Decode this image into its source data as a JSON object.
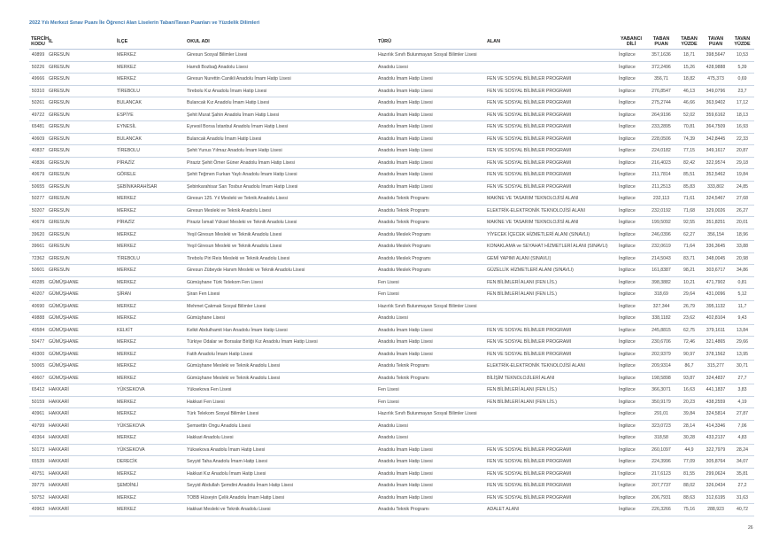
{
  "title": "2022 Yılı Merkezi Sınav Puanı İle Öğrenci Alan Liselerin Taban/Tavan Puanları ve Yüzdelik Dilimleri",
  "columns": [
    "TERCİH KODU",
    "İL",
    "İLÇE",
    "OKUL ADI",
    "TÜRÜ",
    "ALAN",
    "YABANCI DİLİ",
    "TABAN PUAN",
    "TABAN YÜZDE",
    "TAVAN PUAN",
    "TAVAN YÜZDE"
  ],
  "rows": [
    [
      "40899",
      "GIRESUN",
      "MERKEZ",
      "Giresun Sosyal Bilimler Lisesi",
      "Hazırlık Sınıfı Bulunmayan Sosyal Bilimler Lisesi",
      "",
      "İngilizce",
      "357,1636",
      "18,71",
      "398,5647",
      "10,53"
    ],
    [
      "50226",
      "GIRESUN",
      "MERKEZ",
      "Hamdi Bozbağ Anadolu Lisesi",
      "Anadolu Lisesi",
      "",
      "İngilizce",
      "372,2496",
      "15,26",
      "428,9888",
      "5,39"
    ],
    [
      "49666",
      "GIRESUN",
      "MERKEZ",
      "Giresun Nurettin Canikli Anadolu İmam Hatip Lisesi",
      "Anadolu İmam Hatip Lisesi",
      "FEN VE SOSYAL BİLİMLER PROGRAMI",
      "İngilizce",
      "356,71",
      "18,82",
      "475,373",
      "0,69"
    ],
    [
      "50310",
      "GIRESUN",
      "TİREBOLU",
      "Tirebolu Kız Anadolu İmam Hatip Lisesi",
      "Anadolu İmam Hatip Lisesi",
      "FEN VE SOSYAL BİLİMLER PROGRAMI",
      "İngilizce",
      "276,8547",
      "46,13",
      "349,0796",
      "23,7"
    ],
    [
      "50261",
      "GIRESUN",
      "BULANCAK",
      "Bulancak Kız Anadolu İmam Hatip Lisesi",
      "Anadolu İmam Hatip Lisesi",
      "FEN VE SOSYAL BİLİMLER PROGRAMI",
      "İngilizce",
      "275,2744",
      "46,66",
      "363,9402",
      "17,12"
    ],
    [
      "49722",
      "GIRESUN",
      "ESPİYE",
      "Şehit Murat Şahin Anadolu İmam Hatip Lisesi",
      "Anadolu İmam Hatip Lisesi",
      "FEN VE SOSYAL BİLİMLER PROGRAMI",
      "İngilizce",
      "264,9196",
      "52,02",
      "359,6162",
      "18,13"
    ],
    [
      "65481",
      "GIRESUN",
      "EYNESİL",
      "Eynesil Borsa İstanbul Anadolu İmam Hatip Lisesi",
      "Anadolu İmam Hatip Lisesi",
      "FEN VE SOSYAL BİLİMLER PROGRAMI",
      "İngilizce",
      "233,2895",
      "70,81",
      "364,7509",
      "16,93"
    ],
    [
      "40609",
      "GIRESUN",
      "BULANCAK",
      "Bulancak Anadolu İmam Hatip Lisesi",
      "Anadolu İmam Hatip Lisesi",
      "FEN VE SOSYAL BİLİMLER PROGRAMI",
      "İngilizce",
      "228,0506",
      "74,39",
      "342,8445",
      "22,33"
    ],
    [
      "40837",
      "GIRESUN",
      "TİREBOLU",
      "Şehit Yunus Yılmaz Anadolu İmam Hatip Lisesi",
      "Anadolu İmam Hatip Lisesi",
      "FEN VE SOSYAL BİLİMLER PROGRAMI",
      "İngilizce",
      "224,0182",
      "77,15",
      "349,1617",
      "20,87"
    ],
    [
      "40836",
      "GIRESUN",
      "PİRAZİZ",
      "Piraziz Şehit Ömer Güner Anadolu İmam Hatip Lisesi",
      "Anadolu İmam Hatip Lisesi",
      "FEN VE SOSYAL BİLİMLER PROGRAMI",
      "İngilizce",
      "216,4023",
      "82,42",
      "322,9574",
      "29,18"
    ],
    [
      "40679",
      "GIRESUN",
      "GÖRELE",
      "Şehit Teğmen Furkan Yaylı Anadolu İmam Hatip Lisesi",
      "Anadolu İmam Hatip Lisesi",
      "FEN VE SOSYAL BİLİMLER PROGRAMI",
      "İngilizce",
      "211,7814",
      "85,51",
      "352,5462",
      "19,84"
    ],
    [
      "50655",
      "GIRESUN",
      "ŞEBİNKARAHİSAR",
      "Şebinkarahisar Sarı Tosbur Anadolu İmam Hatip Lisesi",
      "Anadolu İmam Hatip Lisesi",
      "FEN VE SOSYAL BİLİMLER PROGRAMI",
      "İngilizce",
      "211,2513",
      "85,83",
      "333,802",
      "24,85"
    ],
    [
      "50277",
      "GIRESUN",
      "MERKEZ",
      "Giresun 125. Yıl Mesleki ve Teknik Anadolu Lisesi",
      "Anadolu Teknik Programı",
      "MAKİNE VE TASARIM TEKNOLOJİSİ ALANI",
      "İngilizce",
      "232,113",
      "71,61",
      "324,5467",
      "27,68"
    ],
    [
      "50207",
      "GIRESUN",
      "MERKEZ",
      "Giresun Mesleki ve Teknik Anadolu Lisesi",
      "Anadolu Teknik Programı",
      "ELEKTRİK-ELEKTRONİK TEKNOLOJİSİ ALANI",
      "İngilizce",
      "232,0192",
      "71,68",
      "329,0026",
      "26,27"
    ],
    [
      "40679",
      "GIRESUN",
      "PİRAZİZ",
      "Piraziz İsmail Yüksel Mesleki ve Teknik Anadolu Lisesi",
      "Anadolu Teknik Programı",
      "MAKİNE VE TASARIM TEKNOLOJİSİ ALANI",
      "İngilizce",
      "199,5092",
      "92,55",
      "351,8251",
      "20,01"
    ],
    [
      "39620",
      "GIRESUN",
      "MERKEZ",
      "Yeşil Giresun Mesleki ve Teknik Anadolu Lisesi",
      "Anadolu Meslek Programı",
      "YİYECEK İÇECEK HİZMETLERİ ALANI (SINAVLI)",
      "İngilizce",
      "246,0396",
      "62,27",
      "356,154",
      "18,96"
    ],
    [
      "39661",
      "GIRESUN",
      "MERKEZ",
      "Yeşil Giresun Mesleki ve Teknik Anadolu Lisesi",
      "Anadolu Meslek Programı",
      "KONAKLAMA ve SEYAHAT HİZMETLERİ ALANI (SINAVLI)",
      "İngilizce",
      "232,0619",
      "71,64",
      "336,3645",
      "33,88"
    ],
    [
      "72362",
      "GIRESUN",
      "TİREBOLU",
      "Tirebolu Piri Reis Mesleki ve Teknik Anadolu Lisesi",
      "Anadolu Meslek Programı",
      "GEMİ YAPIMI ALANI (SINAVLI)",
      "İngilizce",
      "214,5043",
      "83,71",
      "348,0045",
      "20,98"
    ],
    [
      "50601",
      "GIRESUN",
      "MERKEZ",
      "Giresun Zübeyde Hanım Mesleki ve Teknik Anadolu Lisesi",
      "Anadolu Meslek Programı",
      "GÜZELLİK HİZMETLERİ ALANI (SINAVLI)",
      "İngilizce",
      "161,8387",
      "98,21",
      "303,6717",
      "34,86"
    ],
    [
      "49285",
      "GÜMÜŞHANE",
      "MERKEZ",
      "Gümüşhane Türk Telekom Fen Lisesi",
      "Fen Lisesi",
      "FEN BİLİMLERİ ALANI (FEN LİS.)",
      "İngilizce",
      "398,3882",
      "10,21",
      "471,7902",
      "0,81"
    ],
    [
      "40207",
      "GÜMÜŞHANE",
      "ŞİRAN",
      "Şiran Fen Lisesi",
      "Fen Lisesi",
      "FEN BİLİMLERİ ALANI (FEN LİS.)",
      "İngilizce",
      "318,69",
      "29,64",
      "431,0096",
      "5,12"
    ],
    [
      "40690",
      "GÜMÜŞHANE",
      "MERKEZ",
      "Mehmet Çakmak Sosyal Bilimler Lisesi",
      "Hazırlık Sınıfı Bulunmayan Sosyal Bilimler Lisesi",
      "",
      "İngilizce",
      "327,344",
      "26,79",
      "395,1132",
      "11,7"
    ],
    [
      "49888",
      "GÜMÜŞHANE",
      "MERKEZ",
      "Gümüşhane Lisesi",
      "Anadolu Lisesi",
      "",
      "İngilizce",
      "338,1182",
      "23,62",
      "402,8104",
      "9,43"
    ],
    [
      "49584",
      "GÜMÜŞHANE",
      "KELKİT",
      "Kelkit Abdulhamit Han Anadolu İmam Hatip Lisesi",
      "Anadolu İmam Hatip Lisesi",
      "FEN VE SOSYAL BİLİMLER PROGRAMI",
      "İngilizce",
      "245,8815",
      "62,75",
      "379,1611",
      "13,84"
    ],
    [
      "50477",
      "GÜMÜŞHANE",
      "MERKEZ",
      "Türkiye Odalar ve Borsalar Birliği Kız Anadolu İmam Hatip Lisesi",
      "Anadolu İmam Hatip Lisesi",
      "FEN VE SOSYAL BİLİMLER PROGRAMI",
      "İngilizce",
      "230,6706",
      "72,46",
      "321,4865",
      "29,66"
    ],
    [
      "49300",
      "GÜMÜŞHANE",
      "MERKEZ",
      "Fatih Anadolu İmam Hatip Lisesi",
      "Anadolu İmam Hatip Lisesi",
      "FEN VE SOSYAL BİLİMLER PROGRAMI",
      "İngilizce",
      "202,9379",
      "90,97",
      "378,1562",
      "13,95"
    ],
    [
      "50065",
      "GÜMÜŞHANE",
      "MERKEZ",
      "Gümüşhane Mesleki ve Teknik Anadolu Lisesi",
      "Anadolu Teknik Programı",
      "ELEKTRİK-ELEKTRONİK TEKNOLOJİSİ ALANI",
      "İngilizce",
      "209,9314",
      "86,7",
      "315,277",
      "30,71"
    ],
    [
      "49607",
      "GÜMÜŞHANE",
      "MERKEZ",
      "Gümüşhane Mesleki ve Teknik Anadolu Lisesi",
      "Anadolu Teknik Programı",
      "BİLİŞİM TEKNOLOJİLERİ ALANI",
      "İngilizce",
      "198,5898",
      "93,87",
      "324,4837",
      "27,7"
    ],
    [
      "65412",
      "HAKKARİ",
      "YÜKSEKOVA",
      "Yüksekova Fen Lisesi",
      "Fen Lisesi",
      "FEN BİLİMLERİ ALANI (FEN LİS.)",
      "İngilizce",
      "366,3071",
      "16,63",
      "441,1837",
      "3,83"
    ],
    [
      "50159",
      "HAKKARİ",
      "MERKEZ",
      "Hakkari Fen Lisesi",
      "Fen Lisesi",
      "FEN BİLİMLERİ ALANI (FEN LİS.)",
      "İngilizce",
      "350,9179",
      "20,23",
      "438,2559",
      "4,19"
    ],
    [
      "40961",
      "HAKKARİ",
      "MERKEZ",
      "Türk Telekom Sosyal Bilimler Lisesi",
      "Hazırlık Sınıfı Bulunmayan Sosyal Bilimler Lisesi",
      "",
      "İngilizce",
      "291,01",
      "39,84",
      "324,5814",
      "27,87"
    ],
    [
      "49799",
      "HAKKARİ",
      "YÜKSEKOVA",
      "Şemsettin Ongu Anadolu Lisesi",
      "Anadolu Lisesi",
      "",
      "İngilizce",
      "323,0723",
      "28,14",
      "414,3346",
      "7,06"
    ],
    [
      "49364",
      "HAKKARİ",
      "MERKEZ",
      "Hakkari Anadolu Lisesi",
      "Anadolu Lisesi",
      "",
      "İngilizce",
      "318,58",
      "30,28",
      "433,2137",
      "4,83"
    ],
    [
      "50173",
      "HAKKARİ",
      "YÜKSEKOVA",
      "Yüksekova Anadolu İmam Hatip Lisesi",
      "Anadolu İmam Hatip Lisesi",
      "FEN VE SOSYAL BİLİMLER PROGRAMI",
      "İngilizce",
      "260,1097",
      "44,9",
      "322,7979",
      "28,24"
    ],
    [
      "65539",
      "HAKKARİ",
      "DERECİK",
      "Seyyid Taha Anadolu İmam Hatip Lisesi",
      "Anadolu İmam Hatip Lisesi",
      "FEN VE SOSYAL BİLİMLER PROGRAMI",
      "İngilizce",
      "224,3996",
      "77,09",
      "305,8764",
      "34,07"
    ],
    [
      "49751",
      "HAKKARİ",
      "MERKEZ",
      "Hakkari Kız Anadolu İmam Hatip Lisesi",
      "Anadolu İmam Hatip Lisesi",
      "FEN VE SOSYAL BİLİMLER PROGRAMI",
      "İngilizce",
      "217,6123",
      "81,55",
      "299,0624",
      "35,81"
    ],
    [
      "39775",
      "HAKKARİ",
      "ŞEMDİNLİ",
      "Seyyid Abdullah Şemdini Anadolu İmam Hatip Lisesi",
      "Anadolu İmam Hatip Lisesi",
      "FEN VE SOSYAL BİLİMLER PROGRAMI",
      "İngilizce",
      "207,7737",
      "88,02",
      "326,0434",
      "27,2"
    ],
    [
      "50752",
      "HAKKARİ",
      "MERKEZ",
      "TOBB Hüseyin Çelik Anadolu İmam Hatip Lisesi",
      "Anadolu İmam Hatip Lisesi",
      "FEN VE SOSYAL BİLİMLER PROGRAMI",
      "İngilizce",
      "206,7931",
      "88,63",
      "312,6195",
      "31,63"
    ],
    [
      "49963",
      "HAKKARİ",
      "MERKEZ",
      "Hakkari Mesleki ve Teknik Anadolu Lisesi",
      "Anadolu Teknik Programı",
      "ADALET ALANI",
      "İngilizce",
      "226,3266",
      "75,16",
      "288,923",
      "40,72"
    ]
  ],
  "page_number": "26"
}
